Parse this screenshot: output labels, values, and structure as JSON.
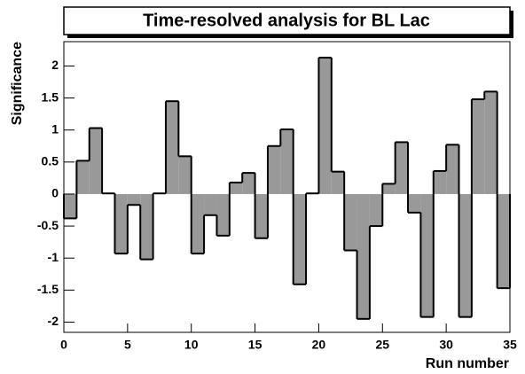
{
  "chart_data": {
    "type": "histogram",
    "title": "Time-resolved analysis for BL Lac",
    "x_label": "Run number",
    "y_label": "Significance",
    "bins": [
      0,
      1,
      2,
      3,
      4,
      5,
      6,
      7,
      8,
      9,
      10,
      11,
      12,
      13,
      14,
      15,
      16,
      17,
      18,
      19,
      20,
      21,
      22,
      23,
      24,
      25,
      26,
      27,
      28,
      29,
      30,
      31,
      32,
      33,
      34,
      35
    ],
    "values": [
      -0.38,
      0.52,
      1.03,
      0.01,
      -0.93,
      -0.17,
      -1.02,
      0.01,
      1.45,
      0.59,
      -0.93,
      -0.33,
      -0.65,
      0.18,
      0.33,
      -0.69,
      0.75,
      1.01,
      -1.41,
      0.01,
      2.13,
      0.35,
      -0.88,
      -1.95,
      -0.5,
      0.16,
      0.81,
      -0.29,
      -1.92,
      0.36,
      0.77,
      -1.92,
      1.48,
      1.6,
      -1.47
    ],
    "color": "#999999",
    "xlim": [
      0,
      35
    ],
    "xticks": [
      0,
      5,
      10,
      15,
      20,
      25,
      30,
      35
    ],
    "ylim": [
      -2.16,
      2.38
    ],
    "yticks": [
      -2,
      -1.5,
      -1,
      -0.5,
      0,
      0.5,
      1,
      1.5,
      2
    ]
  }
}
